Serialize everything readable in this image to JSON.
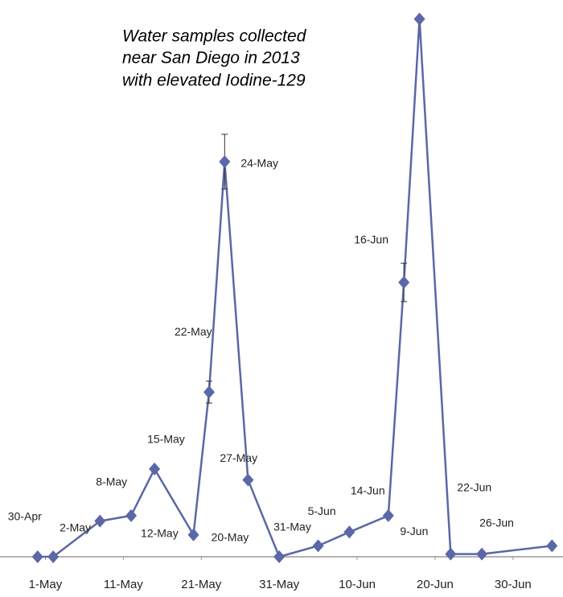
{
  "chart_data": {
    "type": "line",
    "title": [
      "Water samples collected",
      "near San Diego in 2013",
      "with elevated Iodine-129"
    ],
    "x": [
      "2013-04-30",
      "2013-05-02",
      "2013-05-08",
      "2013-05-12",
      "2013-05-15",
      "2013-05-20",
      "2013-05-22",
      "2013-05-24",
      "2013-05-27",
      "2013-05-31",
      "2013-06-05",
      "2013-06-09",
      "2013-06-14",
      "2013-06-16",
      "2013-06-18",
      "2013-06-22",
      "2013-06-26",
      "2013-07-05"
    ],
    "point_labels": [
      "30-Apr",
      "2-May",
      "8-May",
      "12-May",
      "15-May",
      "20-May",
      "22-May",
      "24-May",
      "27-May",
      "31-May",
      "5-Jun",
      "9-Jun",
      "14-Jun",
      "16-Jun",
      null,
      "22-Jun",
      "26-Jun",
      null
    ],
    "series": [
      {
        "color": "#5b67a6",
        "values": [
          0,
          0,
          6.5,
          7.5,
          16,
          4,
          30,
          72,
          14,
          0,
          2,
          4.5,
          7.5,
          50,
          98,
          0.5,
          0.5,
          2
        ],
        "errors": [
          null,
          null,
          null,
          null,
          null,
          null,
          2,
          5,
          null,
          null,
          null,
          null,
          null,
          3.5,
          null,
          null,
          null,
          null
        ]
      }
    ],
    "xlim": [
      "2013-04-26",
      "2013-07-06"
    ],
    "xticks": [
      {
        "value": "2013-05-01",
        "label": "1-May"
      },
      {
        "value": "2013-05-11",
        "label": "11-May"
      },
      {
        "value": "2013-05-21",
        "label": "21-May"
      },
      {
        "value": "2013-05-31",
        "label": "31-May"
      },
      {
        "value": "2013-06-10",
        "label": "10-Jun"
      },
      {
        "value": "2013-06-20",
        "label": "20-Jun"
      },
      {
        "value": "2013-06-30",
        "label": "30-Jun"
      }
    ],
    "ylim": [
      0,
      100
    ]
  }
}
